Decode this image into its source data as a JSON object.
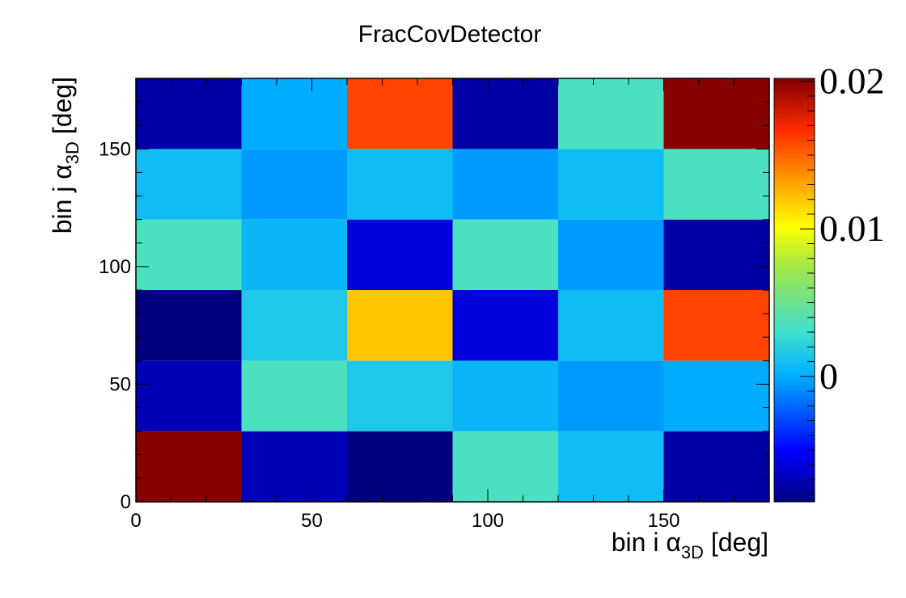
{
  "chart_data": {
    "type": "heatmap",
    "title": "FracCovDetector",
    "xlabel": {
      "main": "bin i α",
      "sub": "3D",
      "unit": " [deg]"
    },
    "ylabel": {
      "main": "bin j α",
      "sub": "3D",
      "unit": " [deg]"
    },
    "xlim": [
      0,
      180
    ],
    "ylim": [
      0,
      180
    ],
    "x_bin_edges": [
      0,
      30,
      60,
      90,
      120,
      150,
      180
    ],
    "y_bin_edges": [
      0,
      30,
      60,
      90,
      120,
      150,
      180
    ],
    "x_ticks": [
      "0",
      "50",
      "100",
      "150"
    ],
    "y_ticks": [
      "0",
      "50",
      "100",
      "150"
    ],
    "x_tick_values": [
      0,
      50,
      100,
      150
    ],
    "y_tick_values": [
      0,
      50,
      100,
      150
    ],
    "z_range": [
      -0.0085,
      0.0202
    ],
    "colorbar_ticks": [
      "0",
      "0.01",
      "0.02"
    ],
    "colorbar_tick_values": [
      0,
      0.01,
      0.02
    ],
    "colormap": "jet",
    "matrix_rows_bottom_to_top": [
      [
        0.02,
        -0.007,
        -0.0085,
        0.0035,
        0.0008,
        -0.0075
      ],
      [
        -0.007,
        0.0035,
        0.0015,
        0.0005,
        -0.0005,
        0.0
      ],
      [
        -0.0085,
        0.0015,
        0.012,
        -0.006,
        0.0008,
        0.016
      ],
      [
        0.0035,
        0.0005,
        -0.006,
        0.0035,
        -0.0005,
        -0.0075
      ],
      [
        0.0008,
        -0.0005,
        0.0008,
        -0.0005,
        0.0008,
        0.0035
      ],
      [
        -0.0075,
        0.0,
        0.016,
        -0.0075,
        0.0035,
        0.02
      ]
    ]
  }
}
